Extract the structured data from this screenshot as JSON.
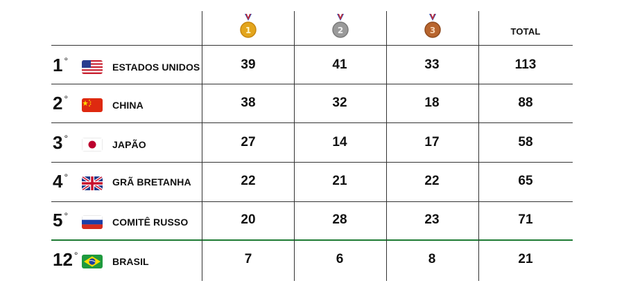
{
  "header": {
    "medals": [
      {
        "name": "gold",
        "number": "1",
        "color": "#e3a51c"
      },
      {
        "name": "silver",
        "number": "2",
        "color": "#9a9a9a"
      },
      {
        "name": "bronze",
        "number": "3",
        "color": "#b8652e"
      }
    ],
    "total_label": "TOTAL"
  },
  "rows": [
    {
      "rank": "1",
      "degree": "°",
      "flag": "usa-flag-icon",
      "country": "ESTADOS UNIDOS",
      "gold": "39",
      "silver": "41",
      "bronze": "33",
      "total": "113"
    },
    {
      "rank": "2",
      "degree": "°",
      "flag": "china-flag-icon",
      "country": "CHINA",
      "gold": "38",
      "silver": "32",
      "bronze": "18",
      "total": "88"
    },
    {
      "rank": "3",
      "degree": "°",
      "flag": "japan-flag-icon",
      "country": "JAPÃO",
      "gold": "27",
      "silver": "14",
      "bronze": "17",
      "total": "58"
    },
    {
      "rank": "4",
      "degree": "°",
      "flag": "uk-flag-icon",
      "country": "GRÃ BRETANHA",
      "gold": "22",
      "silver": "21",
      "bronze": "22",
      "total": "65"
    },
    {
      "rank": "5",
      "degree": "°",
      "flag": "russia-flag-icon",
      "country": "COMITÊ RUSSO",
      "gold": "20",
      "silver": "28",
      "bronze": "23",
      "total": "71"
    },
    {
      "rank": "12",
      "degree": "°",
      "flag": "brazil-flag-icon",
      "country": "BRASIL",
      "gold": "7",
      "silver": "6",
      "bronze": "8",
      "total": "21"
    }
  ],
  "colors": {
    "grid": "#333333",
    "highlight_divider": "#1e7a33"
  }
}
